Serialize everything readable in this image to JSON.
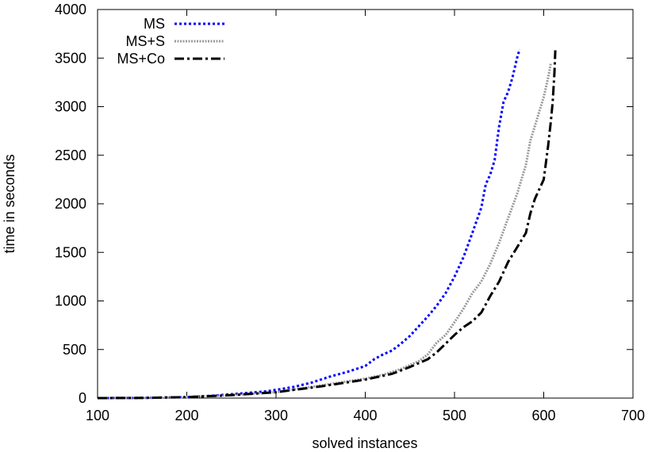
{
  "chart_data": {
    "type": "line",
    "title": "",
    "xlabel": "solved instances",
    "ylabel": "time in seconds",
    "xlim": [
      100,
      700
    ],
    "ylim": [
      0,
      4000
    ],
    "xticks": [
      100,
      200,
      300,
      400,
      500,
      600,
      700
    ],
    "yticks": [
      0,
      500,
      1000,
      1500,
      2000,
      2500,
      3000,
      3500,
      4000
    ],
    "grid": false,
    "legend_position": "top-left",
    "series": [
      {
        "name": "MS",
        "color": "#0000ff",
        "style": "dotted",
        "x": [
          100,
          150,
          200,
          230,
          250,
          270,
          290,
          300,
          320,
          340,
          360,
          380,
          400,
          410,
          420,
          430,
          440,
          450,
          460,
          470,
          480,
          490,
          500,
          510,
          520,
          530,
          535,
          540,
          545,
          550,
          555,
          560,
          565,
          570,
          573
        ],
        "y": [
          0,
          2,
          10,
          25,
          40,
          55,
          70,
          85,
          115,
          160,
          220,
          270,
          330,
          400,
          450,
          490,
          560,
          640,
          740,
          840,
          950,
          1080,
          1250,
          1450,
          1700,
          1960,
          2200,
          2300,
          2450,
          2800,
          3050,
          3150,
          3300,
          3500,
          3590
        ]
      },
      {
        "name": "MS+S",
        "color": "#999999",
        "style": "dotted",
        "x": [
          100,
          150,
          200,
          250,
          300,
          350,
          400,
          420,
          440,
          460,
          470,
          480,
          490,
          500,
          510,
          520,
          530,
          540,
          550,
          560,
          570,
          580,
          585,
          590,
          595,
          600,
          605,
          608
        ],
        "y": [
          0,
          2,
          10,
          30,
          60,
          130,
          200,
          240,
          300,
          380,
          450,
          570,
          650,
          780,
          920,
          1080,
          1200,
          1380,
          1600,
          1850,
          2100,
          2400,
          2650,
          2800,
          2950,
          3100,
          3300,
          3450
        ]
      },
      {
        "name": "MS+Co",
        "color": "#000000",
        "style": "dash-dot",
        "x": [
          100,
          150,
          200,
          250,
          300,
          350,
          400,
          430,
          450,
          470,
          480,
          490,
          500,
          510,
          520,
          530,
          540,
          550,
          560,
          570,
          580,
          585,
          590,
          595,
          600,
          605,
          608,
          610,
          612,
          613
        ],
        "y": [
          0,
          2,
          10,
          30,
          60,
          120,
          190,
          250,
          320,
          400,
          470,
          560,
          650,
          730,
          790,
          880,
          1050,
          1200,
          1400,
          1550,
          1700,
          1900,
          2050,
          2150,
          2250,
          2600,
          2850,
          3050,
          3350,
          3580
        ]
      }
    ]
  }
}
